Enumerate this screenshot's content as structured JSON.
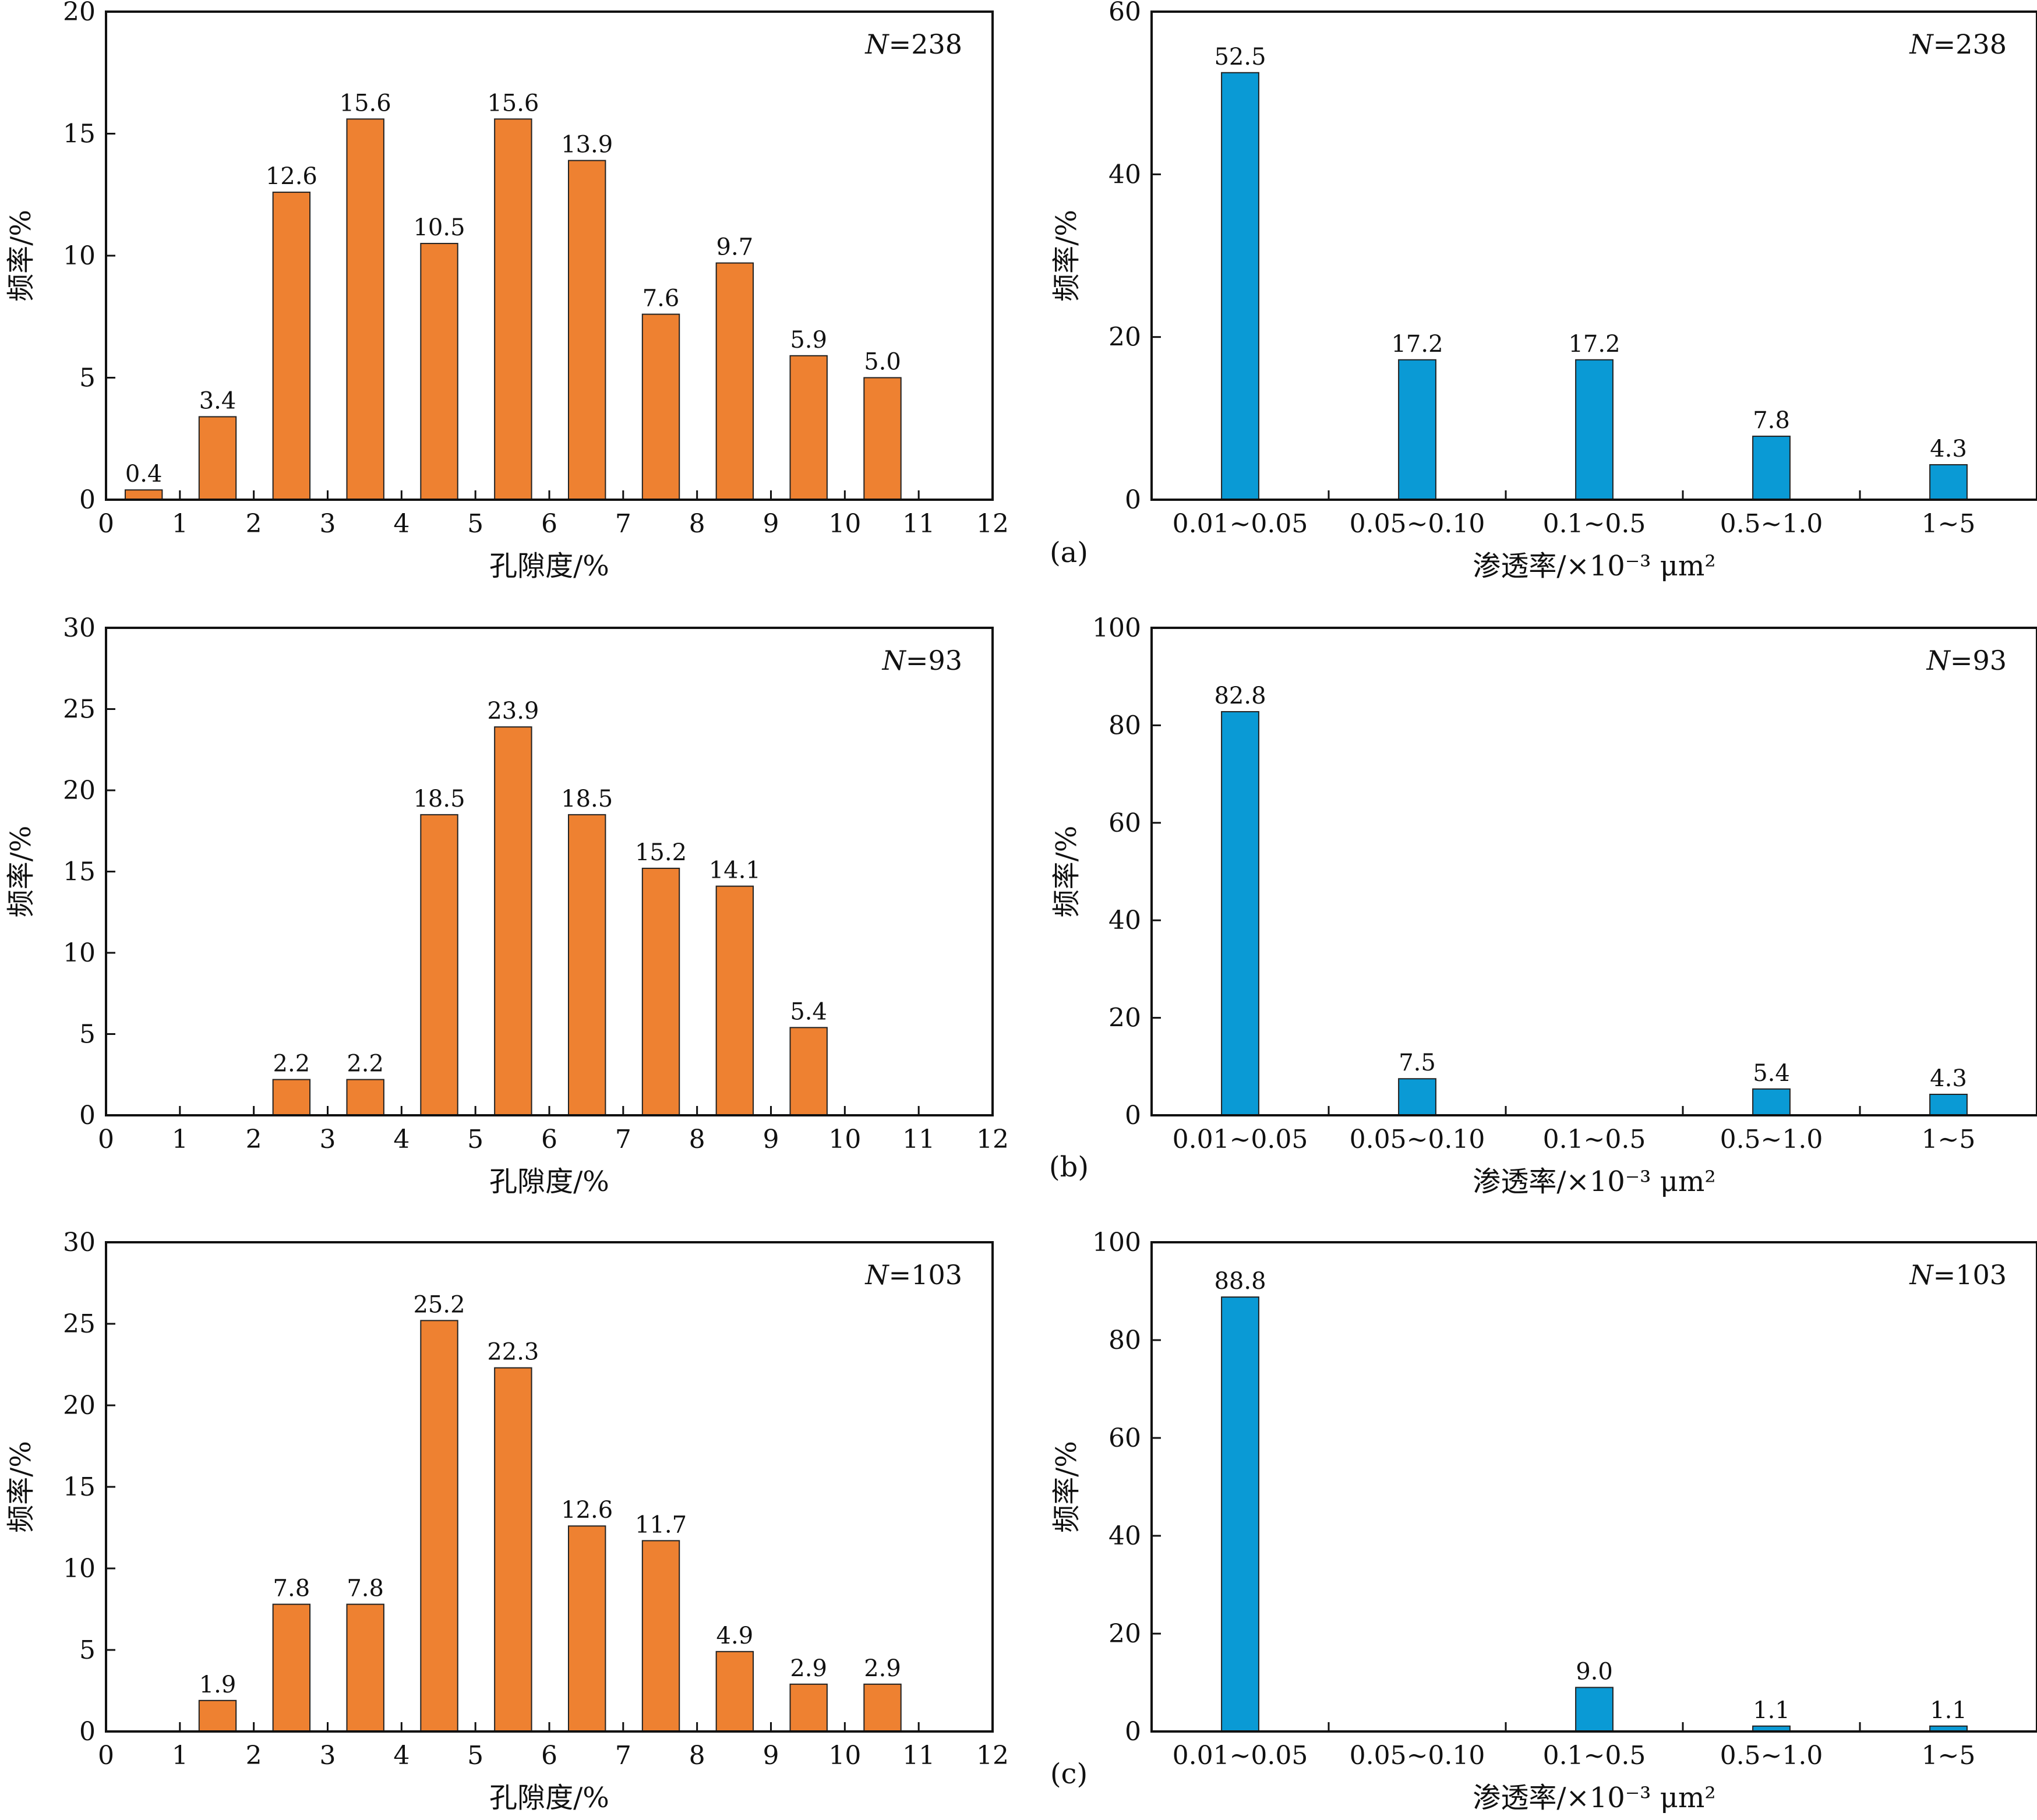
{
  "colors": {
    "porosity": "#EE8131",
    "permeability": "#0A9AD5",
    "axis": "#111111"
  },
  "panel_labels": [
    "(a)",
    "(b)",
    "(c)"
  ],
  "chart_data": [
    {
      "type": "bar",
      "panel": "a",
      "kind": "porosity",
      "n_label": "N=238",
      "xlabel": "孔隙度/%",
      "ylabel": "频率/%",
      "xlim": [
        0,
        12
      ],
      "ylim": [
        0,
        20
      ],
      "yticks": [
        0,
        5,
        10,
        15,
        20
      ],
      "xticks": [
        0,
        1,
        2,
        3,
        4,
        5,
        6,
        7,
        8,
        9,
        10,
        11,
        12
      ],
      "bins": [
        [
          0,
          1
        ],
        [
          1,
          2
        ],
        [
          2,
          3
        ],
        [
          3,
          4
        ],
        [
          4,
          5
        ],
        [
          5,
          6
        ],
        [
          6,
          7
        ],
        [
          7,
          8
        ],
        [
          8,
          9
        ],
        [
          9,
          10
        ],
        [
          10,
          11
        ]
      ],
      "values": [
        0.4,
        3.4,
        12.6,
        15.6,
        10.5,
        15.6,
        13.9,
        7.6,
        9.7,
        5.9,
        5.0
      ],
      "value_labels": [
        "0.4",
        "3.4",
        "12.6",
        "15.6",
        "10.5",
        "15.6",
        "13.9",
        "7.6",
        "9.7",
        "5.9",
        "5.0"
      ]
    },
    {
      "type": "bar",
      "panel": "a",
      "kind": "permeability",
      "n_label": "N=238",
      "xlabel": "渗透率/×10⁻³ μm²",
      "ylabel": "频率/%",
      "ylim": [
        0,
        60
      ],
      "yticks": [
        0,
        20,
        40,
        60
      ],
      "categories": [
        "0.01~0.05",
        "0.05~0.10",
        "0.1~0.5",
        "0.5~1.0",
        "1~5"
      ],
      "values": [
        52.5,
        17.2,
        17.2,
        7.8,
        4.3
      ],
      "value_labels": [
        "52.5",
        "17.2",
        "17.2",
        "7.8",
        "4.3"
      ]
    },
    {
      "type": "bar",
      "panel": "b",
      "kind": "porosity",
      "n_label": "N=93",
      "xlabel": "孔隙度/%",
      "ylabel": "频率/%",
      "xlim": [
        0,
        12
      ],
      "ylim": [
        0,
        30
      ],
      "yticks": [
        0,
        5,
        10,
        15,
        20,
        25,
        30
      ],
      "xticks": [
        0,
        1,
        2,
        3,
        4,
        5,
        6,
        7,
        8,
        9,
        10,
        11,
        12
      ],
      "bins": [
        [
          2,
          3
        ],
        [
          3,
          4
        ],
        [
          4,
          5
        ],
        [
          5,
          6
        ],
        [
          6,
          7
        ],
        [
          7,
          8
        ],
        [
          8,
          9
        ],
        [
          9,
          10
        ]
      ],
      "values": [
        2.2,
        2.2,
        18.5,
        23.9,
        18.5,
        15.2,
        14.1,
        5.4
      ],
      "value_labels": [
        "2.2",
        "2.2",
        "18.5",
        "23.9",
        "18.5",
        "15.2",
        "14.1",
        "5.4"
      ]
    },
    {
      "type": "bar",
      "panel": "b",
      "kind": "permeability",
      "n_label": "N=93",
      "xlabel": "渗透率/×10⁻³ μm²",
      "ylabel": "频率/%",
      "ylim": [
        0,
        100
      ],
      "yticks": [
        0,
        20,
        40,
        60,
        80,
        100
      ],
      "categories": [
        "0.01~0.05",
        "0.05~0.10",
        "0.1~0.5",
        "0.5~1.0",
        "1~5"
      ],
      "values": [
        82.8,
        7.5,
        0,
        5.4,
        4.3
      ],
      "value_labels": [
        "82.8",
        "7.5",
        "",
        "5.4",
        "4.3"
      ]
    },
    {
      "type": "bar",
      "panel": "c",
      "kind": "porosity",
      "n_label": "N=103",
      "xlabel": "孔隙度/%",
      "ylabel": "频率/%",
      "xlim": [
        0,
        12
      ],
      "ylim": [
        0,
        30
      ],
      "yticks": [
        0,
        5,
        10,
        15,
        20,
        25,
        30
      ],
      "xticks": [
        0,
        1,
        2,
        3,
        4,
        5,
        6,
        7,
        8,
        9,
        10,
        11,
        12
      ],
      "bins": [
        [
          1,
          2
        ],
        [
          2,
          3
        ],
        [
          3,
          4
        ],
        [
          4,
          5
        ],
        [
          5,
          6
        ],
        [
          6,
          7
        ],
        [
          7,
          8
        ],
        [
          8,
          9
        ],
        [
          9,
          10
        ],
        [
          10,
          11
        ]
      ],
      "values": [
        1.9,
        7.8,
        7.8,
        25.2,
        22.3,
        12.6,
        11.7,
        4.9,
        2.9,
        2.9
      ],
      "value_labels": [
        "1.9",
        "7.8",
        "7.8",
        "25.2",
        "22.3",
        "12.6",
        "11.7",
        "4.9",
        "2.9",
        "2.9"
      ]
    },
    {
      "type": "bar",
      "panel": "c",
      "kind": "permeability",
      "n_label": "N=103",
      "xlabel": "渗透率/×10⁻³ μm²",
      "ylabel": "频率/%",
      "ylim": [
        0,
        100
      ],
      "yticks": [
        0,
        20,
        40,
        60,
        80,
        100
      ],
      "categories": [
        "0.01~0.05",
        "0.05~0.10",
        "0.1~0.5",
        "0.5~1.0",
        "1~5"
      ],
      "values": [
        88.8,
        0,
        9.0,
        1.1,
        1.1
      ],
      "value_labels": [
        "88.8",
        "",
        "9.0",
        "1.1",
        "1.1"
      ]
    }
  ]
}
